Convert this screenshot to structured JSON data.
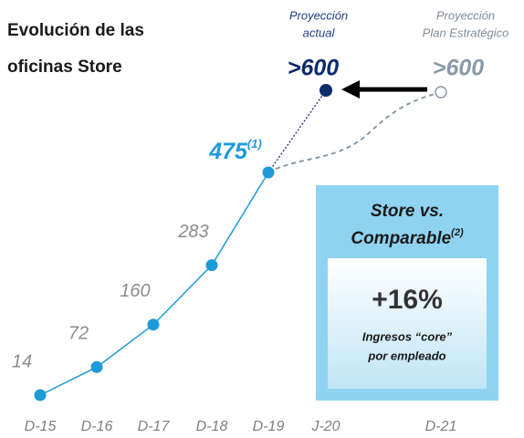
{
  "chart_data": {
    "type": "line",
    "title_lines": [
      "Evolución de las",
      "oficinas Store"
    ],
    "categories": [
      "D-15",
      "D-16",
      "D-17",
      "D-18",
      "D-19",
      "J-20",
      "D-21"
    ],
    "series": [
      {
        "name": "Oficinas Store",
        "color": "#1e9ad8",
        "values": [
          14,
          72,
          160,
          283,
          475,
          null,
          null
        ],
        "last_label_note": "(1)"
      }
    ],
    "projections": [
      {
        "label_lines": [
          "Proyección",
          "actual"
        ],
        "value_label": ">600",
        "color": "#0d2a6b"
      },
      {
        "label_lines": [
          "Proyección",
          "Plan Estratégico"
        ],
        "value_label": ">600",
        "color": "#8a99a8"
      }
    ],
    "callout": {
      "title_lines": [
        "Store vs.",
        "Comparable"
      ],
      "title_note": "(2)",
      "value_label": "+16%",
      "caption_lines": [
        "Ingresos “core”",
        "por empleado"
      ]
    }
  }
}
